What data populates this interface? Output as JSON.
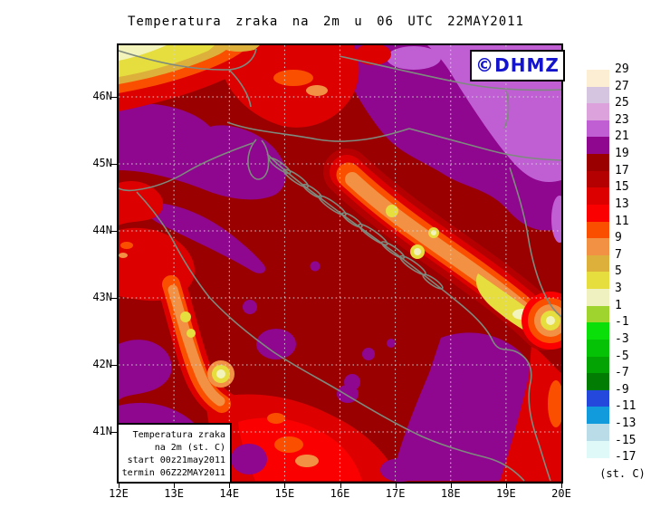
{
  "title": "Temperatura zraka na 2m u 06 UTC 22MAY2011",
  "watermark": {
    "label": "©DHMZ",
    "color": "#1414CC"
  },
  "info_box": {
    "line1": "Temperatura zraka",
    "line2": "na 2m (st. C)",
    "line3": "start 00z21may2011",
    "line4": "termin 06Z22MAY2011"
  },
  "axes": {
    "x_labels": [
      "12E",
      "13E",
      "14E",
      "15E",
      "16E",
      "17E",
      "18E",
      "19E",
      "20E"
    ],
    "y_labels": [
      "46N",
      "45N",
      "44N",
      "43N",
      "42N",
      "41N"
    ]
  },
  "legend": {
    "unit": "(st. C)",
    "entries": [
      {
        "label": "29",
        "color": "#FBEED3"
      },
      {
        "label": "27",
        "color": "#D5C5E0"
      },
      {
        "label": "25",
        "color": "#DCA2DC"
      },
      {
        "label": "23",
        "color": "#BF5FD3"
      },
      {
        "label": "21",
        "color": "#8F068F"
      },
      {
        "label": "19",
        "color": "#9A0000"
      },
      {
        "label": "17",
        "color": "#B40000"
      },
      {
        "label": "15",
        "color": "#DC0000"
      },
      {
        "label": "13",
        "color": "#FB0000"
      },
      {
        "label": "11",
        "color": "#FB4F00"
      },
      {
        "label": "9",
        "color": "#F29143"
      },
      {
        "label": "7",
        "color": "#DDB03C"
      },
      {
        "label": "5",
        "color": "#E6DE3E"
      },
      {
        "label": "3",
        "color": "#EFF2C0"
      },
      {
        "label": "1",
        "color": "#9FD42E"
      },
      {
        "label": "-1",
        "color": "#0ADF0A"
      },
      {
        "label": "-3",
        "color": "#06C206"
      },
      {
        "label": "-5",
        "color": "#03A303"
      },
      {
        "label": "-7",
        "color": "#027C02"
      },
      {
        "label": "-9",
        "color": "#2447DC"
      },
      {
        "label": "-11",
        "color": "#129BDC"
      },
      {
        "label": "-13",
        "color": "#B9DCE8"
      },
      {
        "label": "-15",
        "color": "#DFF8F8"
      },
      {
        "label": "-17",
        "color": null
      }
    ]
  },
  "map_colors": {
    "base_17_19": "#9A0000",
    "purple_19_21": "#8F068F",
    "orchid_21_23": "#BF5FD3",
    "coastline_gray": "#7E8A7E",
    "grid_gray": "#D4D4D4"
  }
}
